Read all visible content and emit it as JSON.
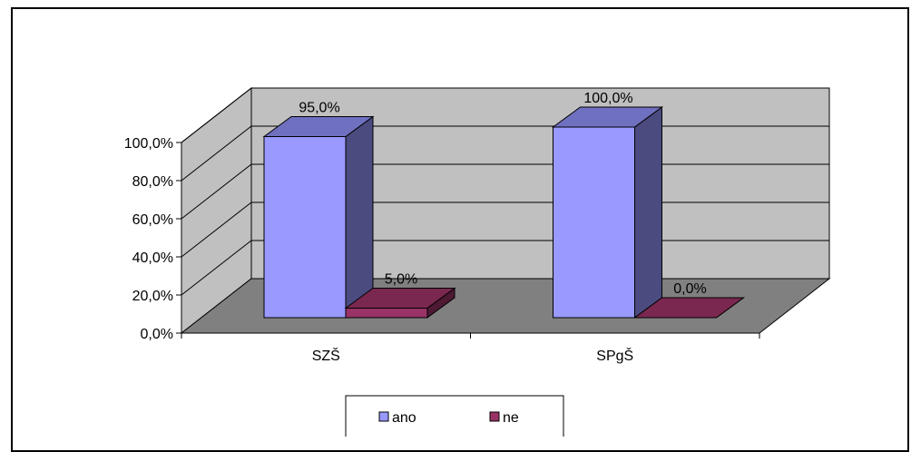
{
  "chart_data": {
    "type": "bar",
    "categories": [
      "SZŠ",
      "SPgŠ"
    ],
    "series": [
      {
        "name": "ano",
        "values": [
          95.0,
          100.0
        ],
        "labels": [
          "95,0%",
          "100,0%"
        ],
        "color": "#9999ff",
        "side_color": "#4b4b80",
        "top_color": "#7070c0"
      },
      {
        "name": "ne",
        "values": [
          5.0,
          0.0
        ],
        "labels": [
          "5,0%",
          "0,0%"
        ],
        "color": "#993366",
        "side_color": "#4d1933",
        "top_color": "#7a2850"
      }
    ],
    "ylim": [
      0,
      100
    ],
    "yticks": [
      "0,0%",
      "20,0%",
      "40,0%",
      "60,0%",
      "80,0%",
      "100,0%"
    ],
    "grid": true,
    "legend": "bottom",
    "wall_color": "#c0c0c0",
    "floor_color": "#808080"
  }
}
